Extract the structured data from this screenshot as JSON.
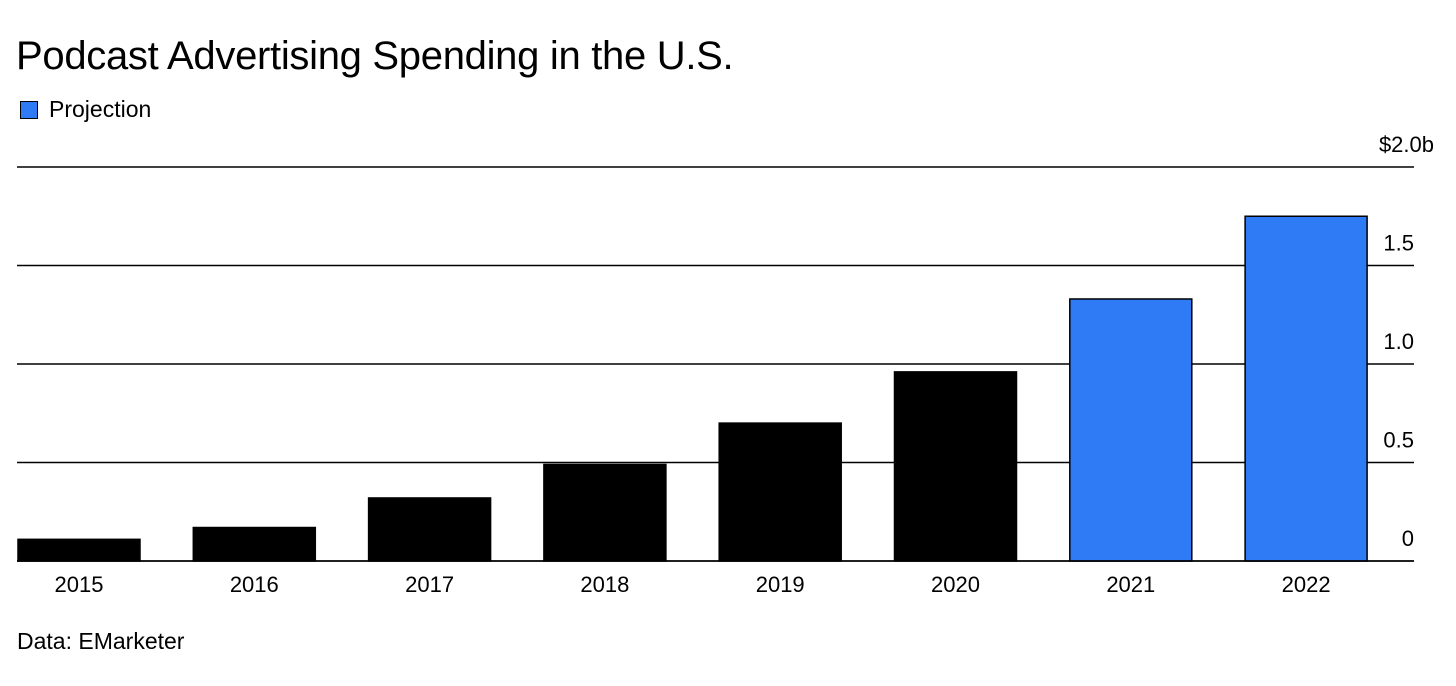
{
  "title": "Podcast Advertising Spending in the U.S.",
  "legend": {
    "label": "Projection",
    "color": "#2f7bf5"
  },
  "source": "Data: EMarketer",
  "colors": {
    "actual": "#000000",
    "projection": "#2f7bf5"
  },
  "chart_data": {
    "type": "bar",
    "title": "Podcast Advertising Spending in the U.S.",
    "xlabel": "",
    "ylabel": "",
    "categories": [
      "2015",
      "2016",
      "2017",
      "2018",
      "2019",
      "2020",
      "2021",
      "2022"
    ],
    "values": [
      0.11,
      0.17,
      0.32,
      0.49,
      0.7,
      0.96,
      1.33,
      1.75
    ],
    "projection": [
      false,
      false,
      false,
      false,
      false,
      false,
      true,
      true
    ],
    "ylim": [
      0,
      2.0
    ],
    "yticks": [
      {
        "value": 0,
        "label": "0"
      },
      {
        "value": 0.5,
        "label": "0.5"
      },
      {
        "value": 1.0,
        "label": "1.0"
      },
      {
        "value": 1.5,
        "label": "1.5"
      },
      {
        "value": 2.0,
        "label": "$2.0b"
      }
    ],
    "grid": true,
    "yaxis_side": "right",
    "legend_position": "top-left"
  }
}
